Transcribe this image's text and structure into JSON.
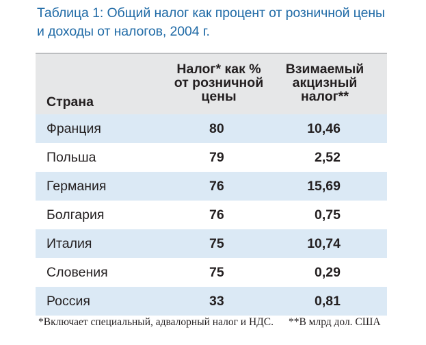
{
  "caption": {
    "line1": "Таблица 1: Общий налог как процент от розничной цены",
    "line2": "и доходы от налогов, 2004 г."
  },
  "headers": {
    "country": "Страна",
    "share_line1": "Налог* как %",
    "share_line2": "от розничной",
    "share_line3": "цены",
    "excise_line1": "Взимаемый",
    "excise_line2": "акцизный",
    "excise_line3": "налог**"
  },
  "rows": [
    {
      "country": "Франция",
      "share": "80",
      "excise": "10,46"
    },
    {
      "country": "Польша",
      "share": "79",
      "excise": "2,52"
    },
    {
      "country": "Германия",
      "share": "76",
      "excise": "15,69"
    },
    {
      "country": "Болгария",
      "share": "76",
      "excise": "0,75"
    },
    {
      "country": "Италия",
      "share": "75",
      "excise": "10,74"
    },
    {
      "country": "Словения",
      "share": "75",
      "excise": "0,29"
    },
    {
      "country": "Россия",
      "share": "33",
      "excise": "0,81"
    }
  ],
  "footnotes": {
    "note1": "*Включает специальный, адвалорный налог и НДС.",
    "note2": "**В млрд дол. США"
  },
  "colors": {
    "caption": "#1f6aa6",
    "header_bg": "#e6e7e8",
    "stripe_bg": "#dbe9f5"
  }
}
